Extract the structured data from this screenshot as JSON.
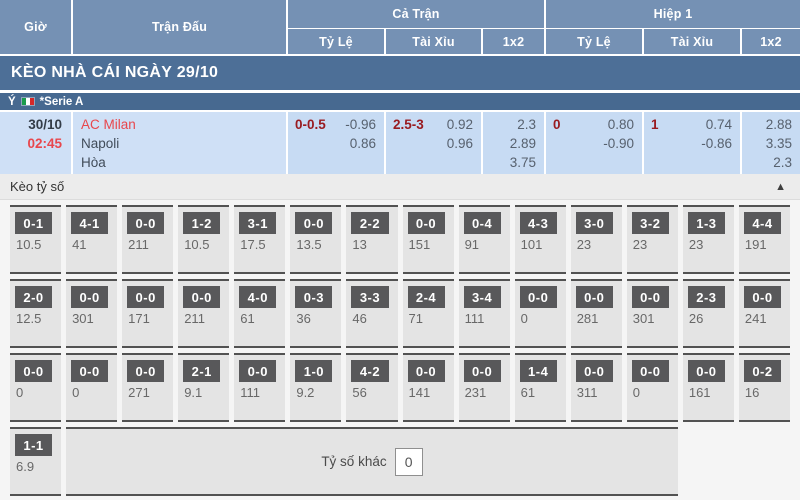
{
  "table_header": {
    "col_time": "Giờ",
    "col_match": "Trận Đấu",
    "group_full": "Cả Trận",
    "group_half": "Hiệp 1",
    "sub_handicap": "Tỷ Lệ",
    "sub_overunder": "Tài Xỉu",
    "sub_1x2": "1x2"
  },
  "section_title": "KÈO NHÀ CÁI NGÀY 29/10",
  "league_bar": {
    "country": "Ý",
    "flag_icon": "italy-flag",
    "league": "*Serie A"
  },
  "match": {
    "date": "30/10",
    "time": "02:45",
    "home": "AC Milan",
    "away": "Napoli",
    "draw_label": "Hòa",
    "full": {
      "handicap": {
        "line": "0-0.5",
        "odds1": "-0.96",
        "odds2": "0.86"
      },
      "overunder": {
        "line": "2.5-3",
        "odds1": "0.92",
        "odds2": "0.96"
      },
      "oneXtwo": {
        "0": "2.3",
        "1": "2.89",
        "2": "3.75"
      }
    },
    "half": {
      "handicap": {
        "line": "0",
        "odds1": "0.80",
        "odds2": "-0.90"
      },
      "overunder": {
        "line": "1",
        "odds1": "0.74",
        "odds2": "-0.86"
      },
      "oneXtwo": {
        "0": "2.88",
        "1": "3.35",
        "2": "2.3"
      }
    }
  },
  "score_section": {
    "title": "Kèo tỷ số",
    "collapse_icon": "▲",
    "rows": [
      [
        {
          "score": "0-1",
          "odds": "10.5"
        },
        {
          "score": "4-1",
          "odds": "41"
        },
        {
          "score": "0-0",
          "odds": "211"
        },
        {
          "score": "1-2",
          "odds": "10.5"
        },
        {
          "score": "3-1",
          "odds": "17.5"
        },
        {
          "score": "0-0",
          "odds": "13.5"
        },
        {
          "score": "2-2",
          "odds": "13"
        },
        {
          "score": "0-0",
          "odds": "151"
        },
        {
          "score": "0-4",
          "odds": "91"
        },
        {
          "score": "4-3",
          "odds": "101"
        },
        {
          "score": "3-0",
          "odds": "23"
        },
        {
          "score": "3-2",
          "odds": "23"
        },
        {
          "score": "1-3",
          "odds": "23"
        },
        {
          "score": "4-4",
          "odds": "191"
        }
      ],
      [
        {
          "score": "2-0",
          "odds": "12.5"
        },
        {
          "score": "0-0",
          "odds": "301"
        },
        {
          "score": "0-0",
          "odds": "171"
        },
        {
          "score": "0-0",
          "odds": "211"
        },
        {
          "score": "4-0",
          "odds": "61"
        },
        {
          "score": "0-3",
          "odds": "36"
        },
        {
          "score": "3-3",
          "odds": "46"
        },
        {
          "score": "2-4",
          "odds": "71"
        },
        {
          "score": "3-4",
          "odds": "111"
        },
        {
          "score": "0-0",
          "odds": "0"
        },
        {
          "score": "0-0",
          "odds": "281"
        },
        {
          "score": "0-0",
          "odds": "301"
        },
        {
          "score": "2-3",
          "odds": "26"
        },
        {
          "score": "0-0",
          "odds": "241"
        }
      ],
      [
        {
          "score": "0-0",
          "odds": "0"
        },
        {
          "score": "0-0",
          "odds": "0"
        },
        {
          "score": "0-0",
          "odds": "271"
        },
        {
          "score": "2-1",
          "odds": "9.1"
        },
        {
          "score": "0-0",
          "odds": "111"
        },
        {
          "score": "1-0",
          "odds": "9.2"
        },
        {
          "score": "4-2",
          "odds": "56"
        },
        {
          "score": "0-0",
          "odds": "141"
        },
        {
          "score": "0-0",
          "odds": "231"
        },
        {
          "score": "1-4",
          "odds": "61"
        },
        {
          "score": "0-0",
          "odds": "311"
        },
        {
          "score": "0-0",
          "odds": "0"
        },
        {
          "score": "0-0",
          "odds": "161"
        },
        {
          "score": "0-2",
          "odds": "16"
        }
      ],
      [
        {
          "score": "1-1",
          "odds": "6.9"
        }
      ]
    ],
    "other_label": "Tỷ số khác",
    "other_value": "0"
  },
  "colors": {
    "header_blue": "#7591b4",
    "section_bar_blue": "#4d6f97",
    "league_bar_blue": "#476990",
    "match_row_blue": "#cfe0f6",
    "odds_col_blue": "#c7dbf3",
    "accent_red": "#e8474d",
    "handicap_dark_red": "#991b20",
    "score_box_gray": "#58585a"
  }
}
